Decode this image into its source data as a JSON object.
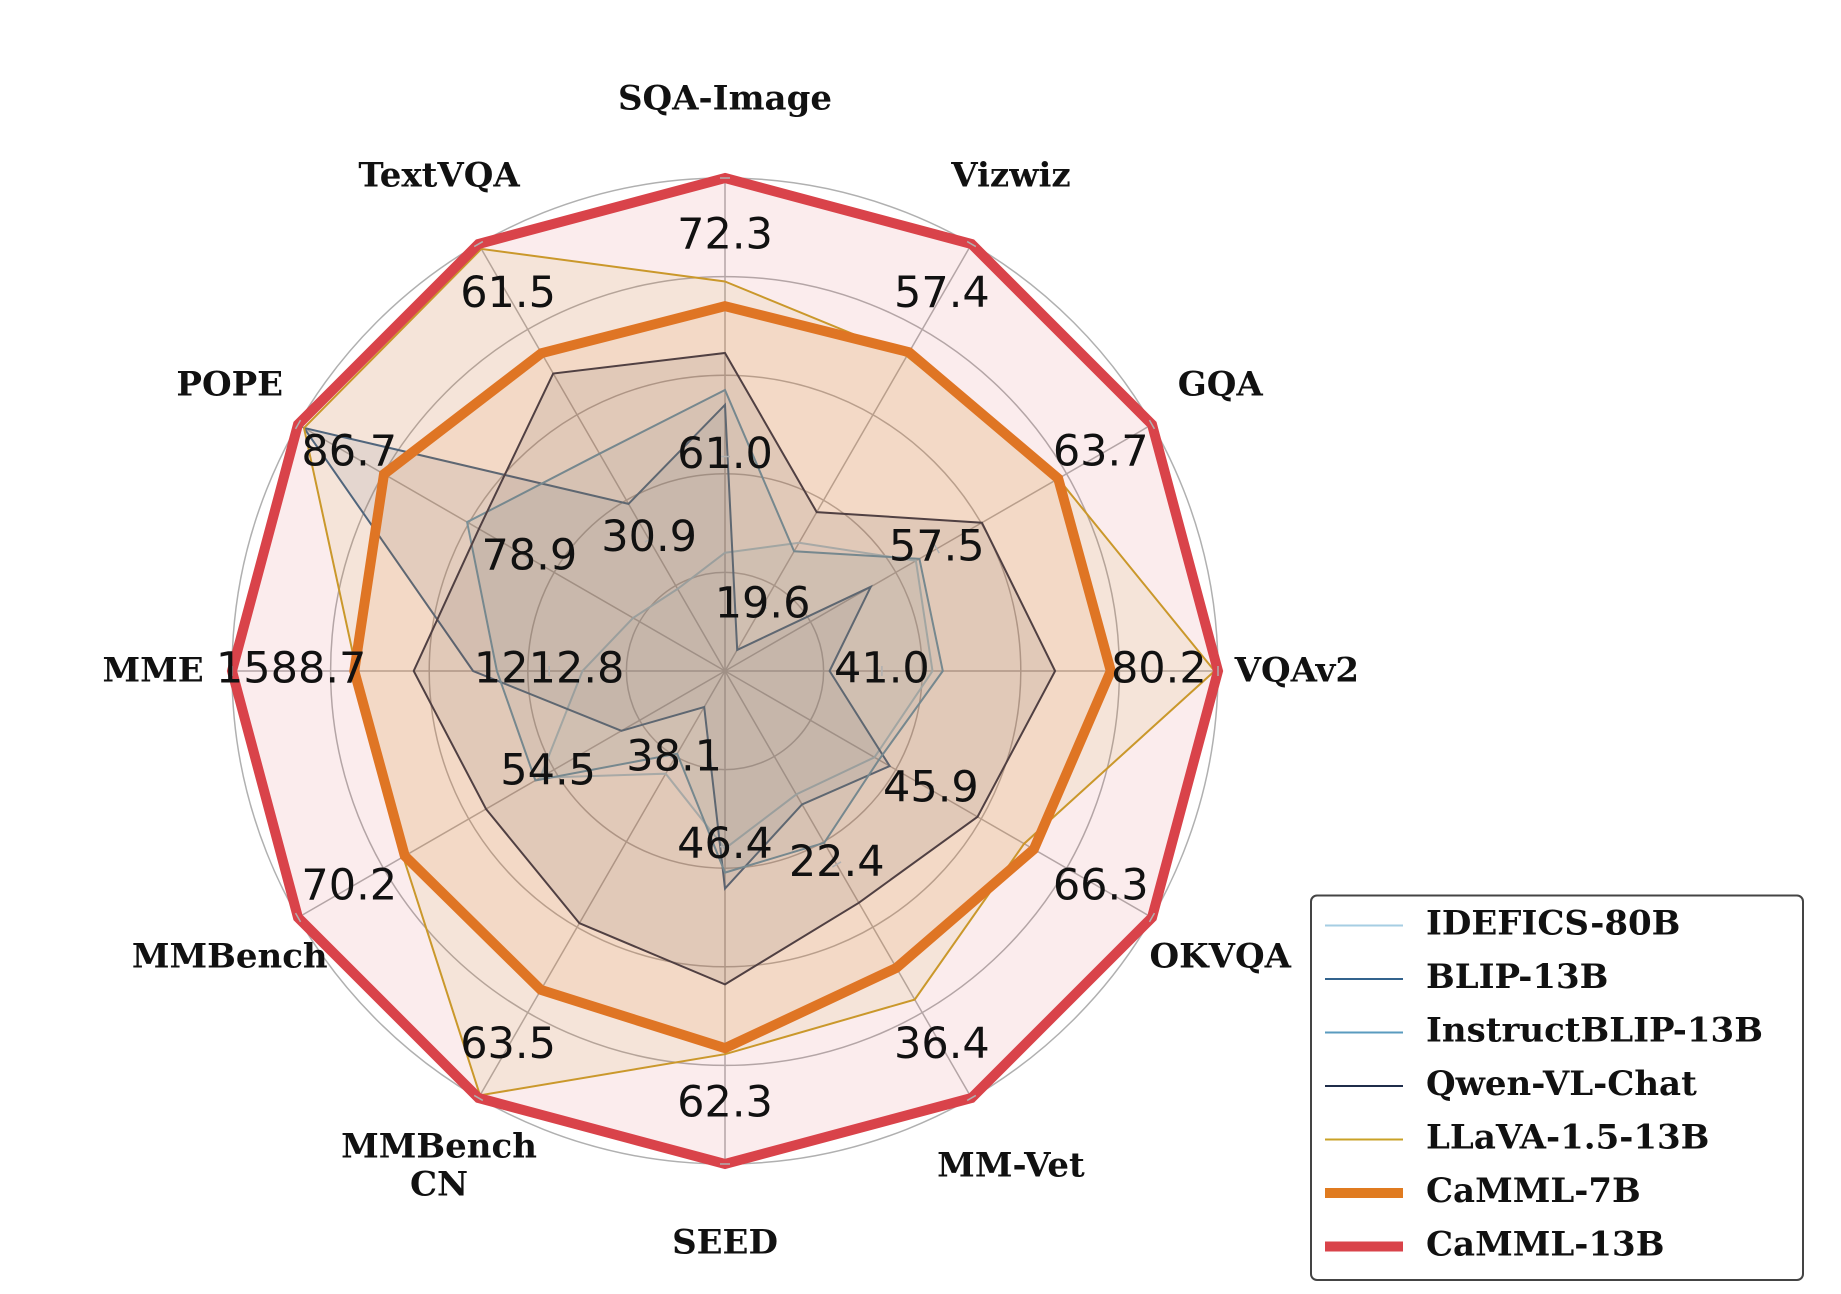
{
  "chart_data": {
    "type": "radar",
    "axes": [
      {
        "name": "SQA-Image",
        "rlim": [
          52.3,
          72.3
        ],
        "ticks": [
          {
            "value": 61.0,
            "label": "61.0"
          },
          72.3
        ]
      },
      {
        "name": "Vizwiz",
        "rlim": [
          12.8,
          57.4
        ],
        "ticks": [
          19.6,
          57.4
        ]
      },
      {
        "name": "GQA",
        "rlim": [
          51.4,
          63.7
        ],
        "ticks": [
          57.5,
          63.7
        ]
      },
      {
        "name": "VQAv2",
        "rlim": [
          22.7,
          80.2
        ],
        "ticks": [
          {
            "value": 41.0,
            "label": "41.0"
          },
          80.2
        ]
      },
      {
        "name": "OKVQA",
        "rlim": [
          26.9,
          66.3
        ],
        "ticks": [
          45.9,
          66.3
        ]
      },
      {
        "name": "MM-Vet",
        "rlim": [
          10.8,
          36.4
        ],
        "ticks": [
          22.4,
          36.4
        ]
      },
      {
        "name": "SEED",
        "rlim": [
          37.6,
          62.3
        ],
        "ticks": [
          46.4,
          62.3
        ]
      },
      {
        "name": "MMBench\nCN",
        "rlim": [
          31.5,
          63.5
        ],
        "ticks": [
          38.1,
          63.5
        ]
      },
      {
        "name": "MMBench",
        "rlim": [
          43.4,
          70.2
        ],
        "ticks": [
          54.5,
          70.2
        ]
      },
      {
        "name": "MME",
        "rlim": [
          1004.4,
          1588.7
        ],
        "ticks": [
          1212.8,
          1588.7
        ]
      },
      {
        "name": "POPE",
        "rlim": [
          72.3,
          86.7
        ],
        "ticks": [
          78.9,
          86.7
        ]
      },
      {
        "name": "TextVQA",
        "rlim": [
          17.3,
          61.5
        ],
        "ticks": [
          30.9,
          61.5
        ]
      }
    ],
    "series": [
      {
        "name": "IDEFICS-80B",
        "color": "#a6cee3",
        "linewidth": 2,
        "values": [
          57.1,
          26.2,
          56.9,
          46.9,
          40.7,
          18.2,
          46.5,
          39.2,
          55.0,
          1173.4,
          75.4,
          25.8
        ]
      },
      {
        "name": "BLIP-13B",
        "color": "#33638d",
        "linewidth": 2,
        "values": [
          63.1,
          15.0,
          55.6,
          34.9,
          42.1,
          18.8,
          48.5,
          34.2,
          49.9,
          1302.9,
          86.5,
          34.6
        ]
      },
      {
        "name": "InstructBLIP-13B",
        "color": "#5a9bbf",
        "linewidth": 2,
        "values": [
          63.7,
          25.3,
          57.0,
          48.1,
          41.1,
          21.1,
          47.7,
          37.7,
          55.3,
          1274.7,
          81.0,
          39.8
        ]
      },
      {
        "name": "Qwen-VL-Chat",
        "color": "#1f2d4a",
        "linewidth": 2,
        "values": [
          65.2,
          29.4,
          58.8,
          61.2,
          50.2,
          24.7,
          53.3,
          50.4,
          58.4,
          1373.3,
          80.6,
          48.1
        ]
      },
      {
        "name": "LLaVA-1.5-13B",
        "color": "#c9a227",
        "linewidth": 2,
        "values": [
          68.1,
          45.7,
          61.0,
          79.8,
          54.5,
          30.5,
          56.8,
          63.3,
          63.6,
          1440.9,
          86.5,
          61.0
        ]
      },
      {
        "name": "CaMML-7B",
        "color": "#e07b20",
        "linewidth": 10,
        "values": [
          67.1,
          46.1,
          61.0,
          67.7,
          55.4,
          28.6,
          56.5,
          55.4,
          63.5,
          1443.7,
          83.8,
          50.2
        ]
      },
      {
        "name": "CaMML-13B",
        "color": "#d9434a",
        "linewidth": 10,
        "values": [
          72.3,
          57.4,
          63.7,
          80.2,
          66.3,
          36.4,
          62.3,
          63.5,
          70.2,
          1588.7,
          86.7,
          61.5
        ]
      }
    ],
    "legend": "lower right"
  }
}
